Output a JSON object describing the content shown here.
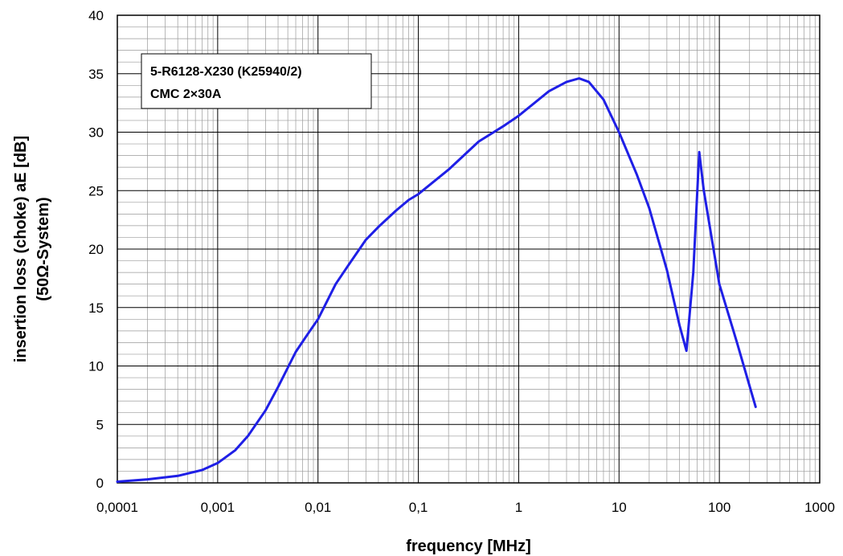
{
  "chart_data": {
    "type": "line",
    "title": "",
    "xlabel": "frequency [MHz]",
    "ylabel": "insertion loss (choke)    aE  [dB]",
    "ylabel2": "(50Ω-System)",
    "x_scale": "log",
    "xlim": [
      0.0001,
      1000
    ],
    "ylim": [
      0,
      40
    ],
    "x_ticks": [
      "0,0001",
      "0,001",
      "0,01",
      "0,1",
      "1",
      "10",
      "100",
      "1000"
    ],
    "y_ticks": [
      "0",
      "5",
      "10",
      "15",
      "20",
      "25",
      "30",
      "35",
      "40"
    ],
    "grid": true,
    "legend": "none",
    "annotation": {
      "line1": "5-R6128-X230  (K25940/2)",
      "line2": "CMC  2×30A",
      "position": "top-left"
    },
    "series": [
      {
        "color": "#1f1fe6",
        "x": [
          0.0001,
          0.0002,
          0.0004,
          0.0007,
          0.001,
          0.0015,
          0.002,
          0.003,
          0.004,
          0.006,
          0.008,
          0.01,
          0.015,
          0.02,
          0.03,
          0.04,
          0.06,
          0.08,
          0.1,
          0.2,
          0.4,
          0.7,
          1,
          2,
          3,
          4,
          5,
          7,
          10,
          15,
          20,
          30,
          40,
          47,
          55,
          63,
          70,
          100,
          150,
          230
        ],
        "y": [
          0.1,
          0.3,
          0.6,
          1.1,
          1.7,
          2.8,
          4.0,
          6.2,
          8.2,
          11.2,
          12.8,
          14.0,
          17.0,
          18.6,
          20.8,
          21.9,
          23.3,
          24.2,
          24.7,
          26.8,
          29.2,
          30.5,
          31.4,
          33.5,
          34.3,
          34.6,
          34.3,
          32.8,
          30.0,
          26.4,
          23.5,
          18.2,
          13.5,
          11.3,
          18.0,
          28.3,
          25.0,
          17.0,
          12.0,
          6.5
        ]
      }
    ]
  }
}
